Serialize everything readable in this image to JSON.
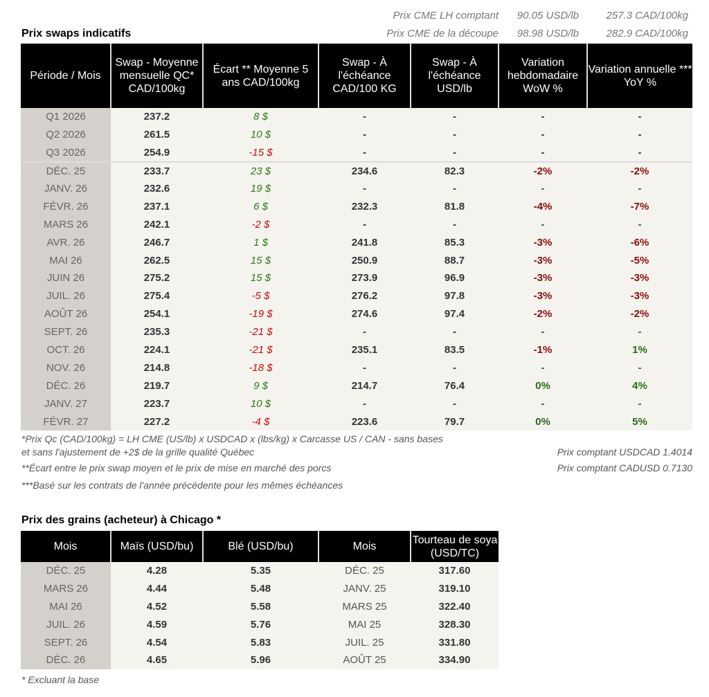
{
  "top": {
    "lh_label": "Prix CME LH comptant",
    "lh_usd": "90.05 USD/lb",
    "lh_cad": "257.3 CAD/100kg",
    "cut_label": "Prix CME de la découpe",
    "cut_usd": "98.98 USD/lb",
    "cut_cad": "282.9 CAD/100kg"
  },
  "swaps": {
    "title": "Prix swaps indicatifs",
    "headers": [
      "Période / Mois",
      "Swap - Moyenne mensuelle QC* CAD/100kg",
      "Écart ** Moyenne 5 ans CAD/100kg",
      "Swap - À l'échéance CAD/100 KG",
      "Swap - À l'échéance USD/lb",
      "Variation hebdomadaire WoW %",
      "Variation annuelle *** YoY %"
    ],
    "rows": [
      [
        "Q1 2026",
        "237.2",
        "8 $",
        "-",
        "-",
        "-",
        "-"
      ],
      [
        "Q2 2026",
        "261.5",
        "10 $",
        "-",
        "-",
        "-",
        "-"
      ],
      [
        "Q3 2026",
        "254.9",
        "-15 $",
        "-",
        "-",
        "-",
        "-"
      ],
      [
        "DÉC. 25",
        "233.7",
        "23 $",
        "234.6",
        "82.3",
        "-2%",
        "-2%"
      ],
      [
        "JANV. 26",
        "232.6",
        "19 $",
        "-",
        "-",
        "-",
        "-"
      ],
      [
        "FÉVR. 26",
        "237.1",
        "6 $",
        "232.3",
        "81.8",
        "-4%",
        "-7%"
      ],
      [
        "MARS 26",
        "242.1",
        "-2 $",
        "-",
        "-",
        "-",
        "-"
      ],
      [
        "AVR. 26",
        "246.7",
        "1 $",
        "241.8",
        "85.3",
        "-3%",
        "-6%"
      ],
      [
        "MAI 26",
        "262.5",
        "15 $",
        "250.9",
        "88.7",
        "-3%",
        "-5%"
      ],
      [
        "JUIN 26",
        "275.2",
        "15 $",
        "273.9",
        "96.9",
        "-3%",
        "-3%"
      ],
      [
        "JUIL. 26",
        "275.4",
        "-5 $",
        "276.2",
        "97.8",
        "-3%",
        "-3%"
      ],
      [
        "AOÛT 26",
        "254.1",
        "-19 $",
        "274.6",
        "97.4",
        "-2%",
        "-2%"
      ],
      [
        "SEPT. 26",
        "235.3",
        "-21 $",
        "-",
        "-",
        "-",
        "-"
      ],
      [
        "OCT. 26",
        "224.1",
        "-21 $",
        "235.1",
        "83.5",
        "-1%",
        "1%"
      ],
      [
        "NOV. 26",
        "214.8",
        "-18 $",
        "-",
        "-",
        "-",
        "-"
      ],
      [
        "DÉC. 26",
        "219.7",
        "9 $",
        "214.7",
        "76.4",
        "0%",
        "4%"
      ],
      [
        "JANV. 27",
        "223.7",
        "10 $",
        "-",
        "-",
        "-",
        "-"
      ],
      [
        "FÉVR. 27",
        "227.2",
        "-4 $",
        "223.6",
        "79.7",
        "0%",
        "5%"
      ]
    ]
  },
  "notes": {
    "n1a": "*Prix Qc (CAD/100kg) = LH CME (US/lb) x USDCAD x (lbs/kg) x Carcasse US / CAN - sans bases",
    "n1b": "et sans l'ajustement de +2$ de la grille qualité Québec",
    "n2": "**Écart entre le prix swap moyen et le prix de mise en marché des porcs",
    "n3": "***Basé sur les contrats de l'année précédente pour les mêmes échéances",
    "usdcad": "Prix comptant USDCAD 1.4014",
    "cadusd": "Prix comptant CADUSD 0.7130"
  },
  "grains": {
    "title": "Prix des grains (acheteur) à Chicago *",
    "headers": [
      "Mois",
      "Maïs (USD/bu)",
      "Blé (USD/bu)",
      "Mois",
      "Tourteau de soya (USD/TC)"
    ],
    "rows": [
      [
        "DÉC. 25",
        "4.28",
        "5.35",
        "DÉC. 25",
        "317.60"
      ],
      [
        "MARS 26",
        "4.44",
        "5.48",
        "JANV. 25",
        "319.10"
      ],
      [
        "MAI 26",
        "4.52",
        "5.58",
        "MARS 25",
        "322.40"
      ],
      [
        "JUIL. 26",
        "4.59",
        "5.76",
        "MAI 25",
        "328.30"
      ],
      [
        "SEPT. 26",
        "4.54",
        "5.83",
        "JUIL. 25",
        "331.80"
      ],
      [
        "DÉC. 26",
        "4.65",
        "5.96",
        "AOÛT 25",
        "334.90"
      ]
    ],
    "note": "* Excluant la base"
  },
  "colors": {
    "positive": "#2a7a1a",
    "negative": "#c0100c",
    "header_bg": "#000000"
  }
}
